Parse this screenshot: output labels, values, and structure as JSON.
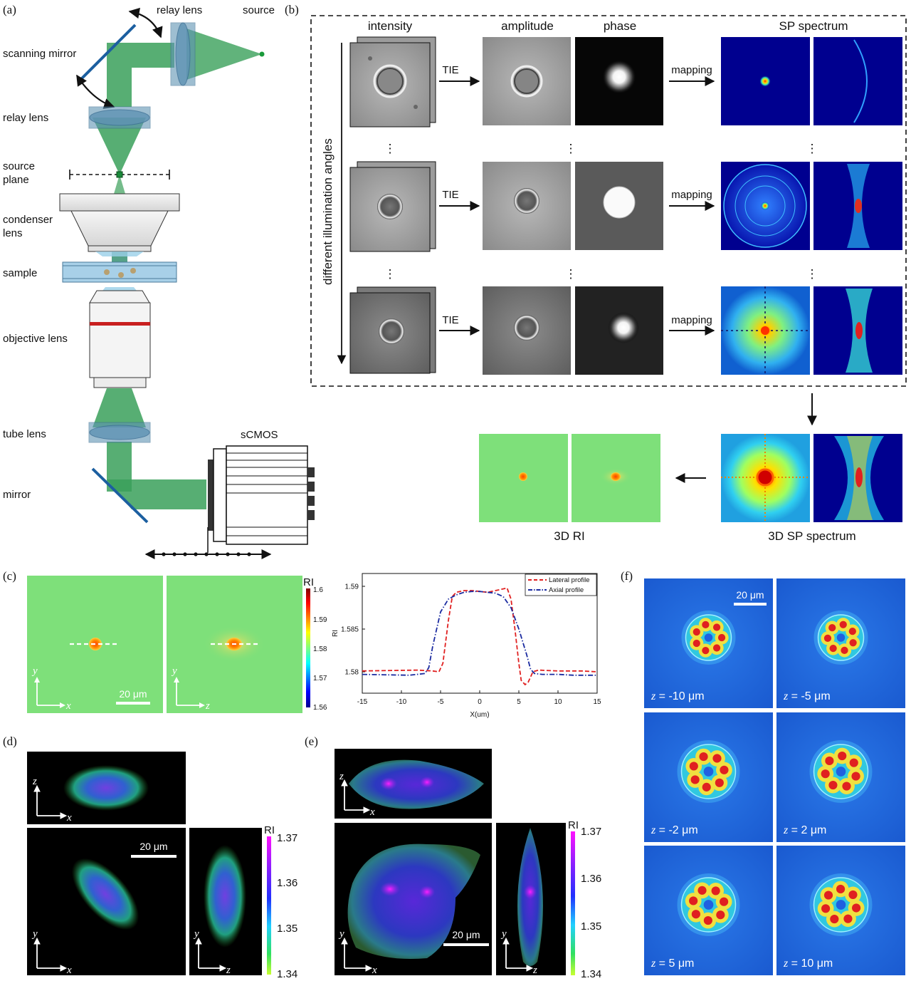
{
  "panels": {
    "a": "(a)",
    "b": "(b)",
    "c": "(c)",
    "d": "(d)",
    "e": "(e)",
    "f": "(f)"
  },
  "setup": {
    "relay_lens_top": "relay lens",
    "source": "source",
    "scanning_mirror": "scanning mirror",
    "relay_lens": "relay lens",
    "source_plane_1": "source",
    "source_plane_2": "plane",
    "condenser_1": "condenser",
    "condenser_2": "lens",
    "sample": "sample",
    "objective": "objective lens",
    "tube_lens": "tube lens",
    "mirror": "mirror",
    "camera": "sCMOS"
  },
  "flow": {
    "col_intensity": "intensity",
    "col_amplitude": "amplitude",
    "col_phase": "phase",
    "col_spectrum": "SP spectrum",
    "side_label": "different illumination angles",
    "tie": "TIE",
    "mapping": "mapping",
    "dots": "⋮",
    "ri_3d": "3D RI",
    "sp_3d": "3D SP spectrum"
  },
  "panel_c": {
    "cb_title": "RI",
    "cb_ticks": [
      "1.6",
      "1.59",
      "1.58",
      "1.57",
      "1.56"
    ],
    "ax_y": "y",
    "ax_x": "x",
    "ax_z": "z",
    "scale": "20 μm"
  },
  "chart_data": {
    "type": "line",
    "xlabel": "X(um)",
    "ylabel": "RI",
    "xlim": [
      -15,
      15
    ],
    "ylim": [
      1.5775,
      1.5915
    ],
    "xticks": [
      -15,
      -10,
      -5,
      0,
      5,
      10,
      15
    ],
    "xtick_labels": [
      "-15",
      "-10",
      "-5",
      "0",
      "5",
      "10",
      "15"
    ],
    "yticks": [
      1.58,
      1.585,
      1.59
    ],
    "ytick_labels": [
      "1.58",
      "1.585",
      "1.59"
    ],
    "legend_position": "top-right",
    "series": [
      {
        "name": "Lateral profile",
        "color": "#e02020",
        "dash": "dashed",
        "x": [
          -15,
          -8,
          -6,
          -5.2,
          -4.7,
          -4,
          -3.5,
          -3,
          -2,
          -1,
          0,
          1,
          2,
          3,
          3.5,
          4,
          4.5,
          5,
          5.3,
          5.8,
          6.2,
          6.8,
          7.5,
          10,
          13,
          15
        ],
        "y": [
          1.5801,
          1.5802,
          1.5801,
          1.58,
          1.581,
          1.586,
          1.5888,
          1.5893,
          1.5895,
          1.5895,
          1.5894,
          1.5893,
          1.5895,
          1.5897,
          1.5898,
          1.5885,
          1.585,
          1.581,
          1.579,
          1.5785,
          1.5788,
          1.58,
          1.5802,
          1.5801,
          1.5801,
          1.58
        ]
      },
      {
        "name": "Axial profile",
        "color": "#1a2aa0",
        "dash": "dashdot",
        "x": [
          -15,
          -9,
          -7,
          -6.5,
          -6,
          -5,
          -4,
          -3,
          -2,
          -1,
          0,
          1,
          2,
          3,
          4,
          5,
          6,
          6.5,
          7,
          8,
          10,
          12,
          15
        ],
        "y": [
          1.5797,
          1.5796,
          1.5798,
          1.5805,
          1.583,
          1.587,
          1.5885,
          1.589,
          1.5893,
          1.5894,
          1.5894,
          1.5893,
          1.5892,
          1.5888,
          1.5875,
          1.585,
          1.582,
          1.5803,
          1.5798,
          1.5797,
          1.5797,
          1.5796,
          1.5796
        ]
      }
    ]
  },
  "panel_d": {
    "cb_title": "RI",
    "cb_ticks": [
      "1.37",
      "1.36",
      "1.35",
      "1.34"
    ],
    "scale": "20 μm",
    "ax_x": "x",
    "ax_y": "y",
    "ax_z": "z"
  },
  "panel_e": {
    "cb_title": "RI",
    "cb_ticks": [
      "1.37",
      "1.36",
      "1.35",
      "1.34"
    ],
    "scale": "20 μm",
    "ax_x": "x",
    "ax_y": "y",
    "ax_z": "z"
  },
  "panel_f": {
    "scale": "20 μm",
    "z_prefix": "z",
    "z_labels": [
      " = -10 μm",
      " = -5 μm",
      " = -2 μm",
      " = 2 μm",
      " = 5 μm",
      " = 10 μm"
    ]
  },
  "colors": {
    "beam": "#3aa05a",
    "lens": "#5f93b4",
    "mirror": "#1c5fa0",
    "jet_dark": "#00008f",
    "field_green": "#7ee07a"
  }
}
